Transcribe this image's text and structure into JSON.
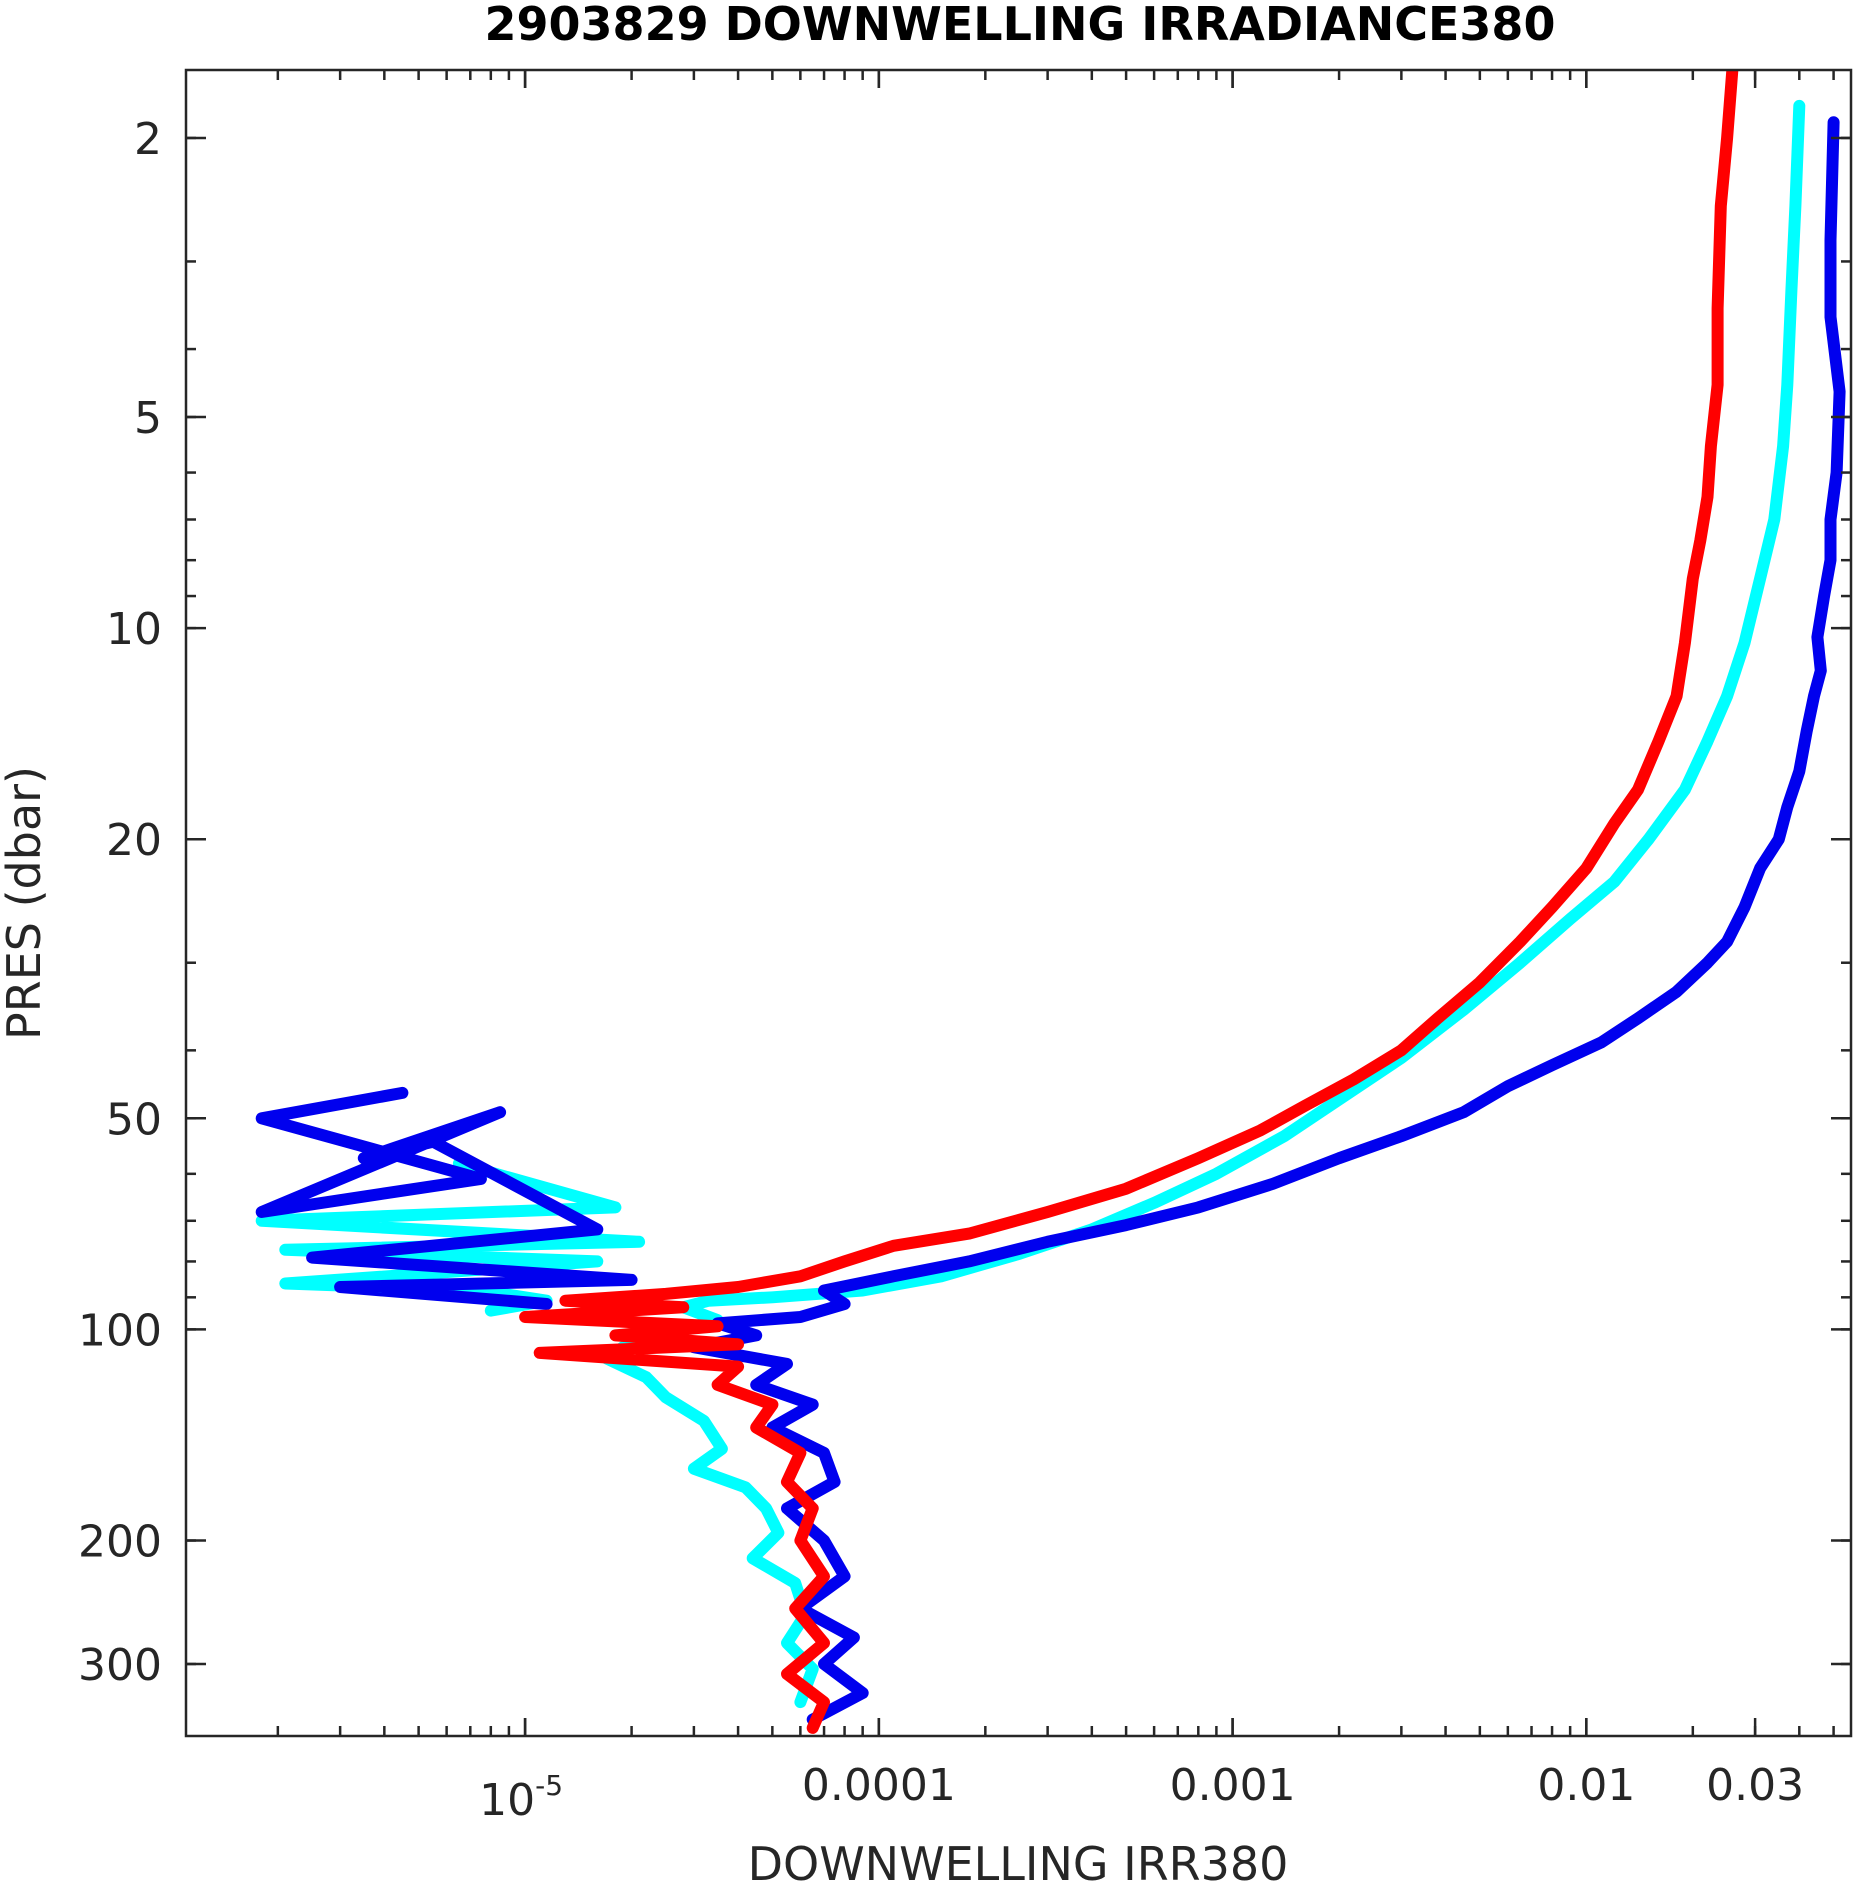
{
  "chart_data": {
    "type": "line",
    "title": "2903829  DOWNWELLING IRRADIANCE380",
    "xlabel": "DOWNWELLING IRR380",
    "ylabel": "PRES (dbar)",
    "xscale": "log",
    "yscale": "log",
    "yreversed": true,
    "xlim": [
      1.1e-06,
      0.056
    ],
    "ylim": [
      1.6,
      380
    ],
    "grid": false,
    "legend": "none",
    "x_ticks": [
      {
        "value": 1e-05,
        "base": "10",
        "exp": "-5"
      },
      {
        "value": 0.0001,
        "label": "0.0001"
      },
      {
        "value": 0.001,
        "label": "0.001"
      },
      {
        "value": 0.01,
        "label": "0.01"
      },
      {
        "value": 0.03,
        "label": "0.03"
      }
    ],
    "y_ticks": [
      {
        "value": 2,
        "label": "2"
      },
      {
        "value": 5,
        "label": "5"
      },
      {
        "value": 10,
        "label": "10"
      },
      {
        "value": 20,
        "label": "20"
      },
      {
        "value": 50,
        "label": "50"
      },
      {
        "value": 100,
        "label": "100"
      },
      {
        "value": 200,
        "label": "200"
      },
      {
        "value": 300,
        "label": "300"
      }
    ],
    "series": [
      {
        "color": "#00FFFF",
        "points": [
          [
            0.04,
            1.8
          ],
          [
            0.039,
            2.5
          ],
          [
            0.038,
            3.3
          ],
          [
            0.037,
            4.5
          ],
          [
            0.036,
            5.5
          ],
          [
            0.034,
            7
          ],
          [
            0.031,
            8.5
          ],
          [
            0.028,
            10.5
          ],
          [
            0.025,
            12.5
          ],
          [
            0.022,
            14.5
          ],
          [
            0.019,
            17
          ],
          [
            0.015,
            20
          ],
          [
            0.012,
            23
          ],
          [
            0.009,
            26
          ],
          [
            0.0065,
            30
          ],
          [
            0.0045,
            35
          ],
          [
            0.003,
            41
          ],
          [
            0.002,
            47
          ],
          [
            0.0014,
            53
          ],
          [
            0.0009,
            60
          ],
          [
            0.0006,
            66
          ],
          [
            0.0004,
            72
          ],
          [
            0.00025,
            78
          ],
          [
            0.00015,
            84
          ],
          [
            9e-05,
            88
          ],
          [
            5e-05,
            90
          ],
          [
            3.3e-05,
            91
          ],
          [
            2.8e-05,
            93
          ],
          [
            3.5e-05,
            97
          ],
          [
            2.8e-05,
            100
          ],
          [
            2e-05,
            104
          ],
          [
            1.7e-05,
            110
          ],
          [
            2.2e-05,
            117
          ],
          [
            2.5e-05,
            125
          ],
          [
            3.2e-05,
            135
          ],
          [
            3.6e-05,
            148
          ],
          [
            3e-05,
            158
          ],
          [
            4.2e-05,
            168
          ],
          [
            4.8e-05,
            180
          ],
          [
            5.2e-05,
            195
          ],
          [
            4.4e-05,
            212
          ],
          [
            5.8e-05,
            230
          ],
          [
            6.2e-05,
            255
          ],
          [
            5.5e-05,
            280
          ],
          [
            6.5e-05,
            305
          ],
          [
            6e-05,
            340
          ]
        ],
        "noisy_points": [
          [
            6.5e-06,
            58
          ],
          [
            1.8e-05,
            67
          ],
          [
            1.8e-06,
            70
          ],
          [
            2.1e-05,
            75
          ],
          [
            2.1e-06,
            77
          ],
          [
            1.6e-05,
            80
          ],
          [
            2.1e-06,
            86
          ],
          [
            7.5e-06,
            88
          ],
          [
            1.15e-05,
            91
          ],
          [
            8e-06,
            94
          ]
        ]
      },
      {
        "color": "#0000EE",
        "points": [
          [
            0.05,
            1.9
          ],
          [
            0.049,
            2.8
          ],
          [
            0.049,
            3.6
          ],
          [
            0.052,
            4.6
          ],
          [
            0.051,
            6
          ],
          [
            0.049,
            7
          ],
          [
            0.049,
            8
          ],
          [
            0.047,
            9
          ],
          [
            0.045,
            10.3
          ],
          [
            0.046,
            11.5
          ],
          [
            0.044,
            12.5
          ],
          [
            0.042,
            14
          ],
          [
            0.04,
            16
          ],
          [
            0.037,
            18
          ],
          [
            0.035,
            20
          ],
          [
            0.031,
            22
          ],
          [
            0.028,
            25
          ],
          [
            0.025,
            28
          ],
          [
            0.022,
            30
          ],
          [
            0.018,
            33
          ],
          [
            0.014,
            36
          ],
          [
            0.011,
            39
          ],
          [
            0.008,
            42
          ],
          [
            0.006,
            45
          ],
          [
            0.0045,
            49
          ],
          [
            0.003,
            53
          ],
          [
            0.002,
            57
          ],
          [
            0.0013,
            62
          ],
          [
            0.0008,
            67
          ],
          [
            0.0005,
            71
          ],
          [
            0.0003,
            75
          ],
          [
            0.00018,
            80
          ],
          [
            0.00011,
            84
          ],
          [
            7e-05,
            88
          ],
          [
            8e-05,
            92
          ],
          [
            6e-05,
            96
          ],
          [
            3.5e-05,
            98
          ],
          [
            4.5e-05,
            102
          ],
          [
            3e-05,
            106
          ],
          [
            5.5e-05,
            112
          ],
          [
            4.5e-05,
            120
          ],
          [
            6.5e-05,
            128
          ],
          [
            5e-05,
            138
          ],
          [
            7e-05,
            150
          ],
          [
            7.5e-05,
            165
          ],
          [
            5.5e-05,
            180
          ],
          [
            7e-05,
            200
          ],
          [
            8e-05,
            225
          ],
          [
            6e-05,
            250
          ],
          [
            8.5e-05,
            275
          ],
          [
            7e-05,
            300
          ],
          [
            9e-05,
            330
          ],
          [
            6.5e-05,
            360
          ]
        ],
        "noisy_points": [
          [
            4.5e-06,
            46
          ],
          [
            1.8e-06,
            50
          ],
          [
            7.5e-06,
            61
          ],
          [
            1.8e-06,
            68
          ],
          [
            8.5e-06,
            49
          ],
          [
            3.5e-06,
            57
          ],
          [
            5.5e-06,
            54
          ],
          [
            1.6e-05,
            72
          ],
          [
            2.5e-06,
            79
          ],
          [
            2e-05,
            85
          ],
          [
            3e-06,
            87
          ],
          [
            1.15e-05,
            92
          ]
        ]
      },
      {
        "color": "#FF0000",
        "points": [
          [
            0.026,
            1.55
          ],
          [
            0.025,
            2.0
          ],
          [
            0.024,
            2.5
          ],
          [
            0.0235,
            3.5
          ],
          [
            0.0235,
            4.5
          ],
          [
            0.0225,
            5.5
          ],
          [
            0.022,
            6.5
          ],
          [
            0.021,
            7.5
          ],
          [
            0.02,
            8.5
          ],
          [
            0.019,
            10.5
          ],
          [
            0.018,
            12.5
          ],
          [
            0.016,
            14.5
          ],
          [
            0.014,
            17
          ],
          [
            0.012,
            19
          ],
          [
            0.01,
            22
          ],
          [
            0.008,
            25
          ],
          [
            0.0065,
            28
          ],
          [
            0.005,
            32
          ],
          [
            0.0038,
            36
          ],
          [
            0.003,
            40
          ],
          [
            0.0022,
            44
          ],
          [
            0.0016,
            48
          ],
          [
            0.0012,
            52
          ],
          [
            0.0008,
            57
          ],
          [
            0.0005,
            63
          ],
          [
            0.0003,
            68
          ],
          [
            0.00018,
            73
          ],
          [
            0.00011,
            76
          ],
          [
            8e-05,
            80
          ],
          [
            6e-05,
            84
          ],
          [
            4e-05,
            87
          ],
          [
            2.5e-05,
            89
          ],
          [
            1.3e-05,
            91
          ],
          [
            2.8e-05,
            93
          ],
          [
            1e-05,
            96
          ],
          [
            3.5e-05,
            99
          ],
          [
            1.8e-05,
            102
          ],
          [
            4e-05,
            105
          ],
          [
            1.1e-05,
            108
          ],
          [
            4e-05,
            113
          ],
          [
            3.5e-05,
            120
          ],
          [
            5e-05,
            128
          ],
          [
            4.5e-05,
            138
          ],
          [
            6e-05,
            150
          ],
          [
            5.5e-05,
            165
          ],
          [
            6.5e-05,
            180
          ],
          [
            6e-05,
            200
          ],
          [
            7e-05,
            225
          ],
          [
            5.8e-05,
            250
          ],
          [
            7e-05,
            280
          ],
          [
            5.5e-05,
            310
          ],
          [
            7e-05,
            340
          ],
          [
            6.5e-05,
            370
          ]
        ],
        "noisy_points": []
      }
    ]
  }
}
